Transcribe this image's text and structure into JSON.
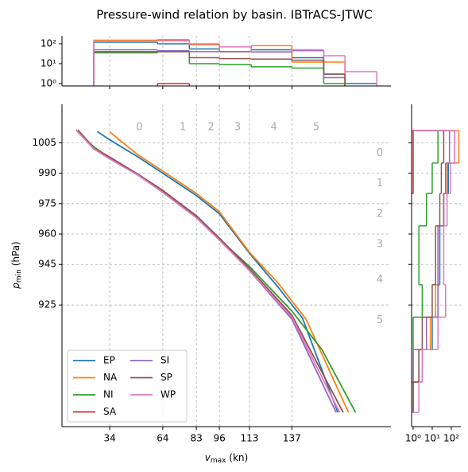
{
  "chart_data": [
    {
      "type": "line",
      "title": "Pressure-wind relation by basin. IBTrACS-JTWC",
      "xlabel": [
        "v",
        "max",
        " (kn)"
      ],
      "ylabel": [
        "p",
        "min",
        " (hPa)"
      ],
      "xlim": [
        7,
        193
      ],
      "ylim": [
        865,
        1024
      ],
      "xticks": [
        34,
        64,
        83,
        96,
        113,
        137
      ],
      "yticks": [
        1005,
        990,
        975,
        960,
        945,
        925
      ],
      "grid": true,
      "legend": "lower left",
      "category_labels": [
        "0",
        "1",
        "2",
        "3",
        "4",
        "5"
      ],
      "series": [
        {
          "name": "EP",
          "color": "#1f77b4",
          "x": [
            27,
            34,
            50,
            64,
            83,
            96,
            113,
            129,
            143,
            163
          ],
          "values": [
            1010.5,
            1006.5,
            998,
            990,
            979,
            970,
            950.5,
            934,
            918.5,
            872
          ]
        },
        {
          "name": "NA",
          "color": "#ff7f0e",
          "x": [
            34,
            40,
            50,
            64,
            83,
            96,
            113,
            129,
            145,
            169
          ],
          "values": [
            1010.5,
            1006,
            999,
            991,
            980,
            971,
            951,
            936,
            918,
            872
          ]
        },
        {
          "name": "NI",
          "color": "#2ca02c",
          "x": [
            15,
            25,
            34,
            50,
            64,
            83,
            96,
            113,
            137,
            154,
            173
          ],
          "values": [
            1011.3,
            1003,
            997.5,
            989,
            981,
            968.5,
            957.5,
            944,
            922,
            903,
            872
          ]
        },
        {
          "name": "SA",
          "color": "#d62728",
          "x": [],
          "values": []
        },
        {
          "name": "SI",
          "color": "#9467bd",
          "x": [
            15,
            25,
            34,
            50,
            64,
            83,
            96,
            113,
            137,
            162
          ],
          "values": [
            1011.3,
            1002,
            997.5,
            989,
            981,
            968.5,
            957.5,
            942,
            918,
            872
          ]
        },
        {
          "name": "SP",
          "color": "#8c564b",
          "x": [
            16,
            25,
            34,
            50,
            64,
            83,
            96,
            113,
            137,
            166
          ],
          "values": [
            1011.3,
            1002.5,
            998,
            989.5,
            981.5,
            969,
            958,
            943,
            920,
            872
          ]
        },
        {
          "name": "WP",
          "color": "#e377c2",
          "x": [
            15,
            25,
            34,
            50,
            64,
            83,
            96,
            113,
            137,
            164
          ],
          "values": [
            1011.3,
            1002,
            997,
            989,
            980.5,
            968,
            957,
            942,
            919,
            872
          ]
        }
      ]
    },
    {
      "type": "histogram",
      "orientation": "vertical",
      "log": true,
      "bins": [
        25,
        61,
        79,
        96,
        114,
        137,
        155,
        167,
        185
      ],
      "xlim": [
        7,
        193
      ],
      "xticks": [
        34,
        64,
        83,
        96,
        113,
        137
      ],
      "ylim": [
        0.76,
        250
      ],
      "yticks": [
        {
          "value": 1,
          "label": "10⁰"
        },
        {
          "value": 10,
          "label": "10¹"
        },
        {
          "value": 100,
          "label": "10²"
        }
      ],
      "series": [
        {
          "name": "EP",
          "color": "#1f77b4",
          "values": [
            120,
            100,
            55,
            40,
            50,
            20,
            3,
            1
          ]
        },
        {
          "name": "NA",
          "color": "#ff7f0e",
          "values": [
            150,
            160,
            90,
            40,
            80,
            12,
            12,
            null
          ]
        },
        {
          "name": "NI",
          "color": "#2ca02c",
          "values": [
            35,
            40,
            10,
            9,
            7,
            6,
            1,
            null
          ]
        },
        {
          "name": "SA",
          "color": "#d62728",
          "values": [
            null,
            1,
            null,
            null,
            null,
            null,
            null,
            null
          ]
        },
        {
          "name": "SI",
          "color": "#9467bd",
          "values": [
            50,
            45,
            40,
            40,
            38,
            45,
            2,
            null
          ]
        },
        {
          "name": "SP",
          "color": "#8c564b",
          "values": [
            40,
            40,
            20,
            18,
            17,
            15,
            3,
            null
          ]
        },
        {
          "name": "WP",
          "color": "#e377c2",
          "values": [
            130,
            140,
            100,
            70,
            40,
            50,
            25,
            4
          ]
        }
      ]
    },
    {
      "type": "histogram",
      "orientation": "horizontal",
      "log": true,
      "bins": [
        872,
        887,
        903,
        919,
        935,
        964,
        980,
        995,
        1011
      ],
      "ylim": [
        865,
        1024
      ],
      "yticks": [
        1005,
        990,
        975,
        960,
        945,
        925
      ],
      "xlim": [
        0.83,
        316
      ],
      "xticks": [
        {
          "value": 1,
          "label": "10⁰"
        },
        {
          "value": 10,
          "label": "10¹"
        },
        {
          "value": 100,
          "label": "10²"
        }
      ],
      "series": [
        {
          "name": "EP",
          "color": "#1f77b4",
          "values": [
            1,
            2,
            10,
            20,
            25,
            40,
            70,
            150
          ]
        },
        {
          "name": "NA",
          "color": "#ff7f0e",
          "values": [
            null,
            3,
            8,
            15,
            20,
            40,
            60,
            250
          ]
        },
        {
          "name": "NI",
          "color": "#2ca02c",
          "values": [
            1,
            1,
            1,
            3,
            2,
            5,
            10,
            20
          ]
        },
        {
          "name": "SA",
          "color": "#d62728",
          "values": [
            null,
            null,
            null,
            null,
            null,
            null,
            1,
            1
          ]
        },
        {
          "name": "SI",
          "color": "#9467bd",
          "values": [
            null,
            1,
            5,
            20,
            20,
            40,
            50,
            80
          ]
        },
        {
          "name": "SP",
          "color": "#8c564b",
          "values": [
            1,
            2,
            3,
            10,
            15,
            25,
            30,
            40
          ]
        },
        {
          "name": "WP",
          "color": "#e377c2",
          "values": [
            2,
            3,
            20,
            50,
            40,
            60,
            90,
            150
          ]
        }
      ]
    }
  ]
}
